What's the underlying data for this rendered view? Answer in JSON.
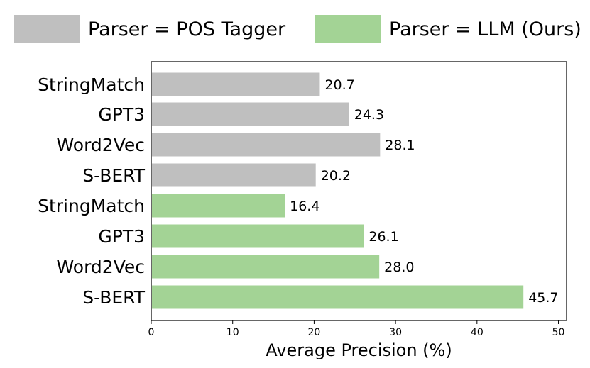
{
  "chart_data": {
    "type": "bar",
    "orientation": "horizontal",
    "xlabel": "Average Precision (%)",
    "ylabel": "",
    "xlim": [
      0,
      51
    ],
    "xticks": [
      0,
      10,
      20,
      30,
      40,
      50
    ],
    "grid": false,
    "legend_position": "top",
    "series": [
      {
        "name": "Parser = POS Tagger",
        "color": "#bfbfbf",
        "categories": [
          "StringMatch",
          "GPT3",
          "Word2Vec",
          "S-BERT"
        ],
        "values": [
          20.7,
          24.3,
          28.1,
          20.2
        ],
        "labels": [
          "20.7",
          "24.3",
          "28.1",
          "20.2"
        ]
      },
      {
        "name": "Parser = LLM (Ours)",
        "color": "#a3d395",
        "categories": [
          "StringMatch",
          "GPT3",
          "Word2Vec",
          "S-BERT"
        ],
        "values": [
          16.4,
          26.1,
          28.0,
          45.7
        ],
        "labels": [
          "16.4",
          "26.1",
          "28.0",
          "45.7"
        ]
      }
    ]
  }
}
